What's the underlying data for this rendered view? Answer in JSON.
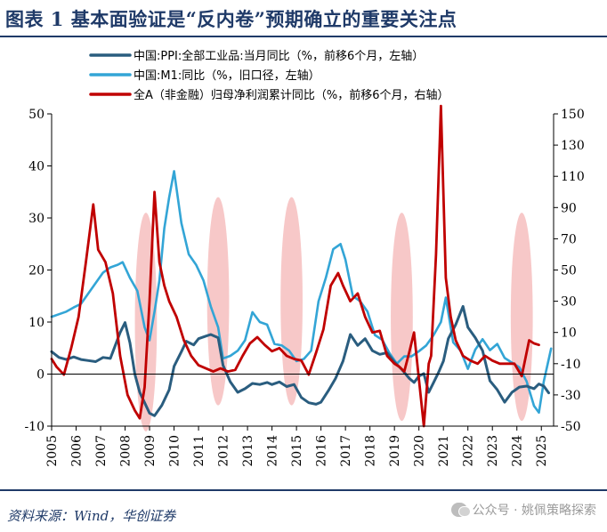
{
  "header": {
    "title": "图表 1    基本面验证是“反内卷”预期确立的重要关注点"
  },
  "footer": {
    "source": "资料来源：Wind，华创证券",
    "watermark": "公众号 · 姚佩策略探索"
  },
  "chart_data": {
    "type": "line",
    "title": "图表 1    基本面验证是“反内卷”预期确立的重要关注点",
    "xlabel": "",
    "ylabel": "",
    "xlim": [
      2005,
      2025.5
    ],
    "ylim_left": [
      -10,
      50
    ],
    "ylim_right": [
      -50,
      150
    ],
    "left_ticks": [
      -10,
      0,
      10,
      20,
      30,
      40,
      50
    ],
    "right_ticks": [
      -50,
      -30,
      -10,
      10,
      30,
      50,
      70,
      90,
      110,
      130,
      150
    ],
    "x_ticks": [
      "2005",
      "2006",
      "2007",
      "2008",
      "2009",
      "2010",
      "2011",
      "2012",
      "2013",
      "2014",
      "2015",
      "2016",
      "2017",
      "2018",
      "2019",
      "2020",
      "2021",
      "2022",
      "2023",
      "2024",
      "2025"
    ],
    "legend_position": "top",
    "grid": false,
    "colors": {
      "ppi": "#2a5d7f",
      "m1": "#33a5d6",
      "profit": "#c00000",
      "highlight": "#f4b6b6"
    },
    "highlight_periods": [
      {
        "center": 2008.85,
        "y_center": 10,
        "y_half": 21
      },
      {
        "center": 2011.8,
        "y_center": 14,
        "y_half": 20
      },
      {
        "center": 2014.8,
        "y_center": 14,
        "y_half": 20
      },
      {
        "center": 2019.3,
        "y_center": 11,
        "y_half": 20
      },
      {
        "center": 2024.2,
        "y_center": 11,
        "y_half": 20
      }
    ],
    "series": [
      {
        "name": "中国:PPI:全部工业品:当月同比（%，前移6个月，左轴）",
        "axis": "left",
        "x": [
          2005.0,
          2005.3,
          2005.6,
          2005.9,
          2006.2,
          2006.5,
          2006.8,
          2007.1,
          2007.4,
          2007.6,
          2007.8,
          2008.0,
          2008.2,
          2008.4,
          2008.6,
          2008.8,
          2009.0,
          2009.2,
          2009.5,
          2009.8,
          2010.0,
          2010.3,
          2010.5,
          2010.8,
          2011.0,
          2011.3,
          2011.5,
          2011.8,
          2012.0,
          2012.3,
          2012.6,
          2012.9,
          2013.2,
          2013.5,
          2013.8,
          2014.0,
          2014.3,
          2014.6,
          2014.9,
          2015.2,
          2015.5,
          2015.8,
          2016.0,
          2016.3,
          2016.6,
          2016.9,
          2017.2,
          2017.5,
          2017.8,
          2018.1,
          2018.4,
          2018.7,
          2019.0,
          2019.3,
          2019.6,
          2019.8,
          2020.0,
          2020.2,
          2020.4,
          2020.6,
          2020.8,
          2021.0,
          2021.2,
          2021.5,
          2021.8,
          2022.0,
          2022.3,
          2022.6,
          2022.9,
          2023.2,
          2023.5,
          2023.8,
          2024.1,
          2024.4,
          2024.7,
          2024.9,
          2025.1,
          2025.3
        ],
        "values": [
          4.3,
          3.2,
          2.8,
          3.3,
          2.8,
          2.6,
          2.4,
          3.2,
          3.0,
          5.5,
          8.0,
          9.9,
          6.0,
          0.0,
          -3.5,
          -5.5,
          -7.5,
          -8.0,
          -6.0,
          -3.0,
          1.5,
          4.3,
          6.3,
          5.6,
          6.8,
          7.3,
          7.6,
          7.0,
          1.7,
          -1.5,
          -3.5,
          -2.8,
          -1.8,
          -2.0,
          -1.6,
          -2.0,
          -1.5,
          -2.4,
          -2.0,
          -4.5,
          -5.5,
          -5.8,
          -5.4,
          -3.2,
          -0.8,
          2.5,
          7.6,
          5.5,
          6.8,
          4.5,
          3.8,
          4.1,
          2.3,
          0.9,
          -0.8,
          -1.6,
          -0.4,
          0.1,
          -3.5,
          -1.6,
          0.3,
          2.5,
          6.8,
          9.5,
          13.0,
          9.0,
          7.0,
          4.5,
          -1.3,
          -3.0,
          -5.4,
          -3.5,
          -2.5,
          -2.3,
          -2.8,
          -1.9,
          -2.3,
          -3.6
        ]
      },
      {
        "name": "中国:M1:同比（%，旧口径，左轴）",
        "axis": "left",
        "x": [
          2005.0,
          2005.3,
          2005.6,
          2005.9,
          2006.2,
          2006.5,
          2006.8,
          2007.1,
          2007.4,
          2007.7,
          2007.9,
          2008.2,
          2008.5,
          2008.8,
          2009.0,
          2009.2,
          2009.4,
          2009.6,
          2009.8,
          2010.0,
          2010.3,
          2010.6,
          2010.9,
          2011.2,
          2011.5,
          2011.8,
          2012.0,
          2012.3,
          2012.6,
          2012.9,
          2013.2,
          2013.5,
          2013.8,
          2014.1,
          2014.4,
          2014.7,
          2015.0,
          2015.3,
          2015.6,
          2015.9,
          2016.2,
          2016.5,
          2016.8,
          2017.0,
          2017.3,
          2017.6,
          2017.9,
          2018.2,
          2018.5,
          2018.8,
          2019.1,
          2019.4,
          2019.7,
          2020.0,
          2020.3,
          2020.6,
          2020.9,
          2021.1,
          2021.4,
          2021.7,
          2022.0,
          2022.3,
          2022.6,
          2022.9,
          2023.2,
          2023.5,
          2023.8,
          2024.1,
          2024.4,
          2024.7,
          2024.9,
          2025.1,
          2025.4
        ],
        "values": [
          11.0,
          11.5,
          12.0,
          12.8,
          13.5,
          15.5,
          17.5,
          19.5,
          20.5,
          21.0,
          21.5,
          18.5,
          16.0,
          9.0,
          6.5,
          12.0,
          18.0,
          28.0,
          34.0,
          39.0,
          29.0,
          23.0,
          21.0,
          18.0,
          13.0,
          9.0,
          3.0,
          3.5,
          4.5,
          6.5,
          11.9,
          10.0,
          9.5,
          5.8,
          5.5,
          4.5,
          2.5,
          2.9,
          4.5,
          14.0,
          18.5,
          24.0,
          25.0,
          22.0,
          15.0,
          14.0,
          12.0,
          7.5,
          6.6,
          4.0,
          2.0,
          3.4,
          3.4,
          4.4,
          5.5,
          7.5,
          10.0,
          14.7,
          6.1,
          4.5,
          1.0,
          4.7,
          6.7,
          4.6,
          5.8,
          3.1,
          2.2,
          1.3,
          -1.4,
          -6.1,
          -7.4,
          -1.4,
          4.9
        ]
      },
      {
        "name": "全A（非金融）归母净利润累计同比（%，前移6个月，右轴）",
        "axis": "right",
        "x": [
          2005.0,
          2005.2,
          2005.5,
          2005.8,
          2006.1,
          2006.4,
          2006.7,
          2006.9,
          2007.2,
          2007.5,
          2007.8,
          2008.1,
          2008.4,
          2008.6,
          2008.8,
          2009.0,
          2009.2,
          2009.4,
          2009.6,
          2009.8,
          2010.1,
          2010.4,
          2010.7,
          2011.0,
          2011.3,
          2011.6,
          2011.9,
          2012.2,
          2012.5,
          2012.8,
          2013.1,
          2013.4,
          2013.7,
          2014.0,
          2014.3,
          2014.6,
          2014.9,
          2015.2,
          2015.5,
          2015.8,
          2016.1,
          2016.4,
          2016.7,
          2016.9,
          2017.2,
          2017.5,
          2017.8,
          2018.1,
          2018.4,
          2018.7,
          2019.0,
          2019.2,
          2019.4,
          2019.6,
          2019.8,
          2020.0,
          2020.2,
          2020.4,
          2020.5,
          2020.7,
          2020.9,
          2021.1,
          2021.3,
          2021.5,
          2021.8,
          2022.1,
          2022.4,
          2022.7,
          2023.0,
          2023.3,
          2023.6,
          2023.9,
          2024.2,
          2024.5,
          2024.7,
          2024.9
        ],
        "values": [
          -7.0,
          -12.0,
          -17.0,
          0.0,
          20.0,
          55.0,
          92.0,
          63.0,
          55.0,
          35.0,
          -5.0,
          -30.0,
          -40.0,
          -45.0,
          -25.0,
          30.0,
          100.0,
          55.0,
          40.0,
          30.0,
          20.0,
          5.0,
          -5.0,
          -11.0,
          -13.0,
          -15.0,
          -13.0,
          -15.0,
          -14.0,
          -5.0,
          3.0,
          7.0,
          2.0,
          -2.0,
          0.0,
          -5.0,
          -7.0,
          -8.0,
          -17.0,
          -3.0,
          12.0,
          40.0,
          48.0,
          40.0,
          30.0,
          35.0,
          20.0,
          10.0,
          11.0,
          -5.0,
          -10.0,
          -12.0,
          -15.0,
          -3.0,
          10.0,
          -20.0,
          -50.0,
          -10.0,
          -5.0,
          60.0,
          155.0,
          45.0,
          20.0,
          5.0,
          -5.0,
          -8.0,
          -10.0,
          -5.0,
          -8.0,
          -10.0,
          -10.0,
          -10.0,
          -18.0,
          5.0,
          3.0,
          2.0
        ]
      }
    ]
  }
}
